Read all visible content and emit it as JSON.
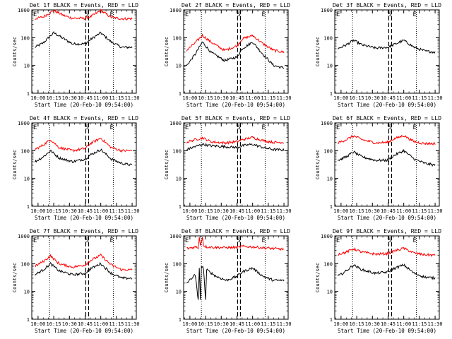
{
  "figure": {
    "x_tick_labels": [
      "10:00",
      "10:15",
      "10:30",
      "10:45",
      "11:00",
      "11:15",
      "11:30"
    ],
    "y_tick_labels": [
      "1",
      "10",
      "100",
      "1000"
    ],
    "ylabel": "Counts/sec",
    "xlabel": "Start Time (20-Feb-10 09:54:00)"
  },
  "chart_data": [
    {
      "type": "line",
      "title": "Det 1f BLACK = Events, RED = LLD",
      "markers": [
        "E",
        "S",
        "E"
      ],
      "xlabel": "Start Time (20-Feb-10 09:54:00)",
      "ylabel": "Counts/sec",
      "yscale": "log",
      "ylim": [
        1,
        1000
      ],
      "xlim": [
        "09:54",
        "11:34"
      ],
      "series": [
        {
          "color": "#000000",
          "points": [
            [
              "09:57",
              45
            ],
            [
              "10:05",
              65
            ],
            [
              "10:15",
              150
            ],
            [
              "10:25",
              90
            ],
            [
              "10:33",
              60
            ],
            [
              "10:45",
              60
            ],
            [
              "10:50",
              85
            ],
            [
              "11:00",
              150
            ],
            [
              "11:10",
              70
            ],
            [
              "11:20",
              45
            ],
            [
              "11:30",
              45
            ]
          ]
        },
        {
          "color": "#ff0000",
          "points": [
            [
              "09:57",
              480
            ],
            [
              "10:05",
              560
            ],
            [
              "10:15",
              950
            ],
            [
              "10:25",
              620
            ],
            [
              "10:33",
              500
            ],
            [
              "10:45",
              500
            ],
            [
              "10:50",
              560
            ],
            [
              "11:00",
              950
            ],
            [
              "11:10",
              540
            ],
            [
              "11:20",
              480
            ],
            [
              "11:30",
              480
            ]
          ]
        }
      ]
    },
    {
      "type": "line",
      "title": "Det 2f BLACK = Events, RED = LLD",
      "markers": [
        "E",
        "S",
        "E"
      ],
      "xlabel": "Start Time (20-Feb-10 09:54:00)",
      "ylabel": "Counts/sec",
      "yscale": "log",
      "ylim": [
        1,
        1000
      ],
      "xlim": [
        "09:54",
        "11:34"
      ],
      "series": [
        {
          "color": "#000000",
          "points": [
            [
              "09:57",
              10
            ],
            [
              "10:05",
              25
            ],
            [
              "10:12",
              70
            ],
            [
              "10:20",
              30
            ],
            [
              "10:33",
              15
            ],
            [
              "10:45",
              20
            ],
            [
              "10:50",
              40
            ],
            [
              "11:00",
              70
            ],
            [
              "11:10",
              25
            ],
            [
              "11:20",
              10
            ],
            [
              "11:30",
              8
            ]
          ]
        },
        {
          "color": "#ff0000",
          "points": [
            [
              "09:57",
              35
            ],
            [
              "10:05",
              65
            ],
            [
              "10:12",
              120
            ],
            [
              "10:20",
              70
            ],
            [
              "10:33",
              35
            ],
            [
              "10:45",
              50
            ],
            [
              "10:50",
              90
            ],
            [
              "11:00",
              120
            ],
            [
              "11:10",
              60
            ],
            [
              "11:20",
              35
            ],
            [
              "11:30",
              30
            ]
          ]
        }
      ]
    },
    {
      "type": "line",
      "title": "Det 3f BLACK = Events, RED = LLD",
      "markers": [
        "E",
        "S",
        "E"
      ],
      "xlabel": "Start Time (20-Feb-10 09:54:00)",
      "ylabel": "Counts/sec",
      "yscale": "log",
      "ylim": [
        1,
        1000
      ],
      "xlim": [
        "09:54",
        "11:34"
      ],
      "series": [
        {
          "color": "#000000",
          "points": [
            [
              "09:57",
              40
            ],
            [
              "10:05",
              55
            ],
            [
              "10:12",
              80
            ],
            [
              "10:20",
              55
            ],
            [
              "10:33",
              42
            ],
            [
              "10:45",
              45
            ],
            [
              "10:50",
              55
            ],
            [
              "11:00",
              80
            ],
            [
              "11:10",
              45
            ],
            [
              "11:20",
              33
            ],
            [
              "11:30",
              30
            ]
          ]
        }
      ]
    },
    {
      "type": "line",
      "title": "Det 4f BLACK = Events, RED = LLD",
      "markers": [
        "E",
        "S",
        "E"
      ],
      "xlabel": "Start Time (20-Feb-10 09:54:00)",
      "ylabel": "Counts/sec",
      "yscale": "log",
      "ylim": [
        1,
        1000
      ],
      "xlim": [
        "09:54",
        "11:34"
      ],
      "series": [
        {
          "color": "#000000",
          "points": [
            [
              "09:57",
              40
            ],
            [
              "10:05",
              60
            ],
            [
              "10:12",
              100
            ],
            [
              "10:20",
              55
            ],
            [
              "10:33",
              40
            ],
            [
              "10:45",
              50
            ],
            [
              "10:50",
              70
            ],
            [
              "11:00",
              110
            ],
            [
              "11:10",
              50
            ],
            [
              "11:20",
              35
            ],
            [
              "11:30",
              30
            ]
          ]
        },
        {
          "color": "#ff0000",
          "points": [
            [
              "09:57",
              110
            ],
            [
              "10:05",
              160
            ],
            [
              "10:12",
              250
            ],
            [
              "10:20",
              130
            ],
            [
              "10:33",
              100
            ],
            [
              "10:45",
              120
            ],
            [
              "10:50",
              180
            ],
            [
              "11:00",
              280
            ],
            [
              "11:10",
              130
            ],
            [
              "11:20",
              100
            ],
            [
              "11:30",
              100
            ]
          ]
        }
      ]
    },
    {
      "type": "line",
      "title": "Det 5f BLACK = Events, RED = LLD",
      "markers": [
        "E",
        "S",
        "E"
      ],
      "xlabel": "Start Time (20-Feb-10 09:54:00)",
      "ylabel": "Counts/sec",
      "yscale": "log",
      "ylim": [
        1,
        1000
      ],
      "xlim": [
        "09:54",
        "11:34"
      ],
      "series": [
        {
          "color": "#000000",
          "points": [
            [
              "09:57",
              110
            ],
            [
              "10:05",
              140
            ],
            [
              "10:12",
              170
            ],
            [
              "10:20",
              150
            ],
            [
              "10:33",
              140
            ],
            [
              "10:45",
              130
            ],
            [
              "10:50",
              150
            ],
            [
              "11:00",
              170
            ],
            [
              "11:10",
              130
            ],
            [
              "11:20",
              110
            ],
            [
              "11:30",
              105
            ]
          ]
        },
        {
          "color": "#ff0000",
          "points": [
            [
              "09:57",
              200
            ],
            [
              "10:05",
              250
            ],
            [
              "10:12",
              290
            ],
            [
              "10:20",
              210
            ],
            [
              "10:33",
              190
            ],
            [
              "10:45",
              210
            ],
            [
              "10:50",
              250
            ],
            [
              "11:00",
              300
            ],
            [
              "11:10",
              230
            ],
            [
              "11:20",
              200
            ],
            [
              "11:30",
              200
            ]
          ]
        }
      ]
    },
    {
      "type": "line",
      "title": "Det 6f BLACK = Events, RED = LLD",
      "markers": [
        "E",
        "S",
        "E"
      ],
      "xlabel": "Start Time (20-Feb-10 09:54:00)",
      "ylabel": "Counts/sec",
      "yscale": "log",
      "ylim": [
        1,
        1000
      ],
      "xlim": [
        "09:54",
        "11:34"
      ],
      "series": [
        {
          "color": "#000000",
          "points": [
            [
              "09:57",
              45
            ],
            [
              "10:05",
              60
            ],
            [
              "10:12",
              90
            ],
            [
              "10:20",
              60
            ],
            [
              "10:33",
              45
            ],
            [
              "10:45",
              45
            ],
            [
              "10:50",
              65
            ],
            [
              "11:00",
              100
            ],
            [
              "11:10",
              50
            ],
            [
              "11:20",
              35
            ],
            [
              "11:30",
              30
            ]
          ]
        },
        {
          "color": "#ff0000",
          "points": [
            [
              "09:57",
              190
            ],
            [
              "10:05",
              250
            ],
            [
              "10:12",
              340
            ],
            [
              "10:20",
              250
            ],
            [
              "10:33",
              190
            ],
            [
              "10:45",
              200
            ],
            [
              "10:50",
              260
            ],
            [
              "11:00",
              350
            ],
            [
              "11:10",
              210
            ],
            [
              "11:20",
              180
            ],
            [
              "11:30",
              180
            ]
          ]
        }
      ]
    },
    {
      "type": "line",
      "title": "Det 7f BLACK = Events, RED = LLD",
      "markers": [
        "E",
        "S",
        "E"
      ],
      "xlabel": "Start Time (20-Feb-10 09:54:00)",
      "ylabel": "Counts/sec",
      "yscale": "log",
      "ylim": [
        1,
        1000
      ],
      "xlim": [
        "09:54",
        "11:34"
      ],
      "series": [
        {
          "color": "#000000",
          "points": [
            [
              "09:57",
              40
            ],
            [
              "10:05",
              60
            ],
            [
              "10:12",
              100
            ],
            [
              "10:20",
              55
            ],
            [
              "10:33",
              40
            ],
            [
              "10:45",
              45
            ],
            [
              "10:50",
              65
            ],
            [
              "11:00",
              100
            ],
            [
              "11:10",
              45
            ],
            [
              "11:20",
              30
            ],
            [
              "11:30",
              30
            ]
          ]
        },
        {
          "color": "#ff0000",
          "points": [
            [
              "09:57",
              80
            ],
            [
              "10:05",
              120
            ],
            [
              "10:12",
              190
            ],
            [
              "10:20",
              100
            ],
            [
              "10:33",
              75
            ],
            [
              "10:45",
              90
            ],
            [
              "10:50",
              130
            ],
            [
              "11:00",
              200
            ],
            [
              "11:10",
              90
            ],
            [
              "11:20",
              60
            ],
            [
              "11:30",
              60
            ]
          ]
        }
      ]
    },
    {
      "type": "line",
      "title": "Det 8f BLACK = Events, RED = LLD",
      "markers": [
        "E",
        "S",
        "E"
      ],
      "xlabel": "Start Time (20-Feb-10 09:54:00)",
      "ylabel": "Counts/sec",
      "yscale": "log",
      "ylim": [
        1,
        1000
      ],
      "xlim": [
        "09:54",
        "11:34"
      ],
      "series": [
        {
          "color": "#000000",
          "points": [
            [
              "09:57",
              20
            ],
            [
              "10:05",
              40
            ],
            [
              "10:08",
              5
            ],
            [
              "10:09",
              70
            ],
            [
              "10:10",
              5
            ],
            [
              "10:11",
              80
            ],
            [
              "10:13",
              70
            ],
            [
              "10:15",
              5
            ],
            [
              "10:16",
              60
            ],
            [
              "10:25",
              35
            ],
            [
              "10:35",
              25
            ],
            [
              "10:45",
              35
            ],
            [
              "10:50",
              50
            ],
            [
              "11:00",
              70
            ],
            [
              "11:10",
              35
            ],
            [
              "11:20",
              25
            ],
            [
              "11:30",
              25
            ]
          ]
        },
        {
          "color": "#ff0000",
          "points": [
            [
              "09:57",
              350
            ],
            [
              "10:05",
              400
            ],
            [
              "10:08",
              380
            ],
            [
              "10:09",
              900
            ],
            [
              "10:10",
              450
            ],
            [
              "10:12",
              900
            ],
            [
              "10:13",
              450
            ],
            [
              "10:16",
              400
            ],
            [
              "10:30",
              380
            ],
            [
              "10:45",
              380
            ],
            [
              "10:50",
              420
            ],
            [
              "11:00",
              400
            ],
            [
              "11:20",
              350
            ],
            [
              "11:30",
              330
            ]
          ]
        }
      ]
    },
    {
      "type": "line",
      "title": "Det 9f BLACK = Events, RED = LLD",
      "markers": [
        "E",
        "S",
        "E"
      ],
      "xlabel": "Start Time (20-Feb-10 09:54:00)",
      "ylabel": "Counts/sec",
      "yscale": "log",
      "ylim": [
        1,
        1000
      ],
      "xlim": [
        "09:54",
        "11:34"
      ],
      "series": [
        {
          "color": "#000000",
          "points": [
            [
              "09:57",
              35
            ],
            [
              "10:05",
              55
            ],
            [
              "10:12",
              90
            ],
            [
              "10:20",
              60
            ],
            [
              "10:33",
              45
            ],
            [
              "10:45",
              50
            ],
            [
              "10:50",
              65
            ],
            [
              "11:00",
              90
            ],
            [
              "11:10",
              45
            ],
            [
              "11:20",
              33
            ],
            [
              "11:30",
              30
            ]
          ]
        },
        {
          "color": "#ff0000",
          "points": [
            [
              "09:57",
              220
            ],
            [
              "10:05",
              260
            ],
            [
              "10:12",
              340
            ],
            [
              "10:20",
              260
            ],
            [
              "10:33",
              220
            ],
            [
              "10:45",
              230
            ],
            [
              "10:50",
              280
            ],
            [
              "11:00",
              360
            ],
            [
              "11:10",
              240
            ],
            [
              "11:20",
              210
            ],
            [
              "11:30",
              200
            ]
          ]
        }
      ]
    }
  ]
}
